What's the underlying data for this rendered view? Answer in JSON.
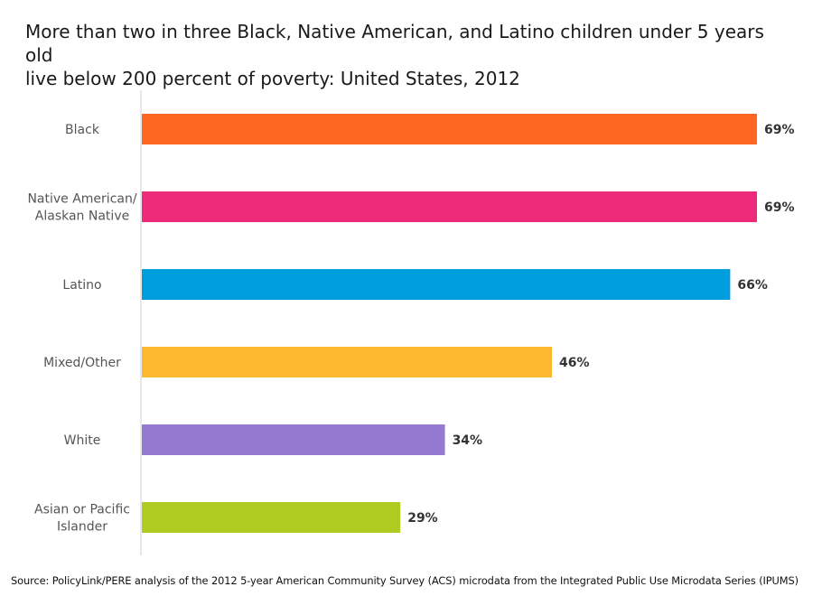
{
  "title_line1": "More than two in three Black, Native American, and Latino children under 5 years old",
  "title_line2": "live below 200 percent of poverty: United States, 2012",
  "source": "Source: PolicyLink/PERE analysis of the 2012 5-year American Community Survey (ACS) microdata from the Integrated Public Use Microdata Series (IPUMS)",
  "chart_data": {
    "type": "bar",
    "orientation": "horizontal",
    "categories": [
      [
        "Black"
      ],
      [
        "Native American/",
        "Alaskan Native"
      ],
      [
        "Latino"
      ],
      [
        "Mixed/Other"
      ],
      [
        "White"
      ],
      [
        "Asian or Pacific",
        "Islander"
      ]
    ],
    "values": [
      69,
      69,
      66,
      46,
      34,
      29
    ],
    "value_labels": [
      "69%",
      "69%",
      "66%",
      "46%",
      "34%",
      "29%"
    ],
    "colors": [
      "#ff6622",
      "#ee2a7b",
      "#009ddd",
      "#fbb830",
      "#9479d0",
      "#b0cb22"
    ],
    "xlim": [
      0,
      100
    ],
    "grid": false,
    "legend": "none"
  }
}
